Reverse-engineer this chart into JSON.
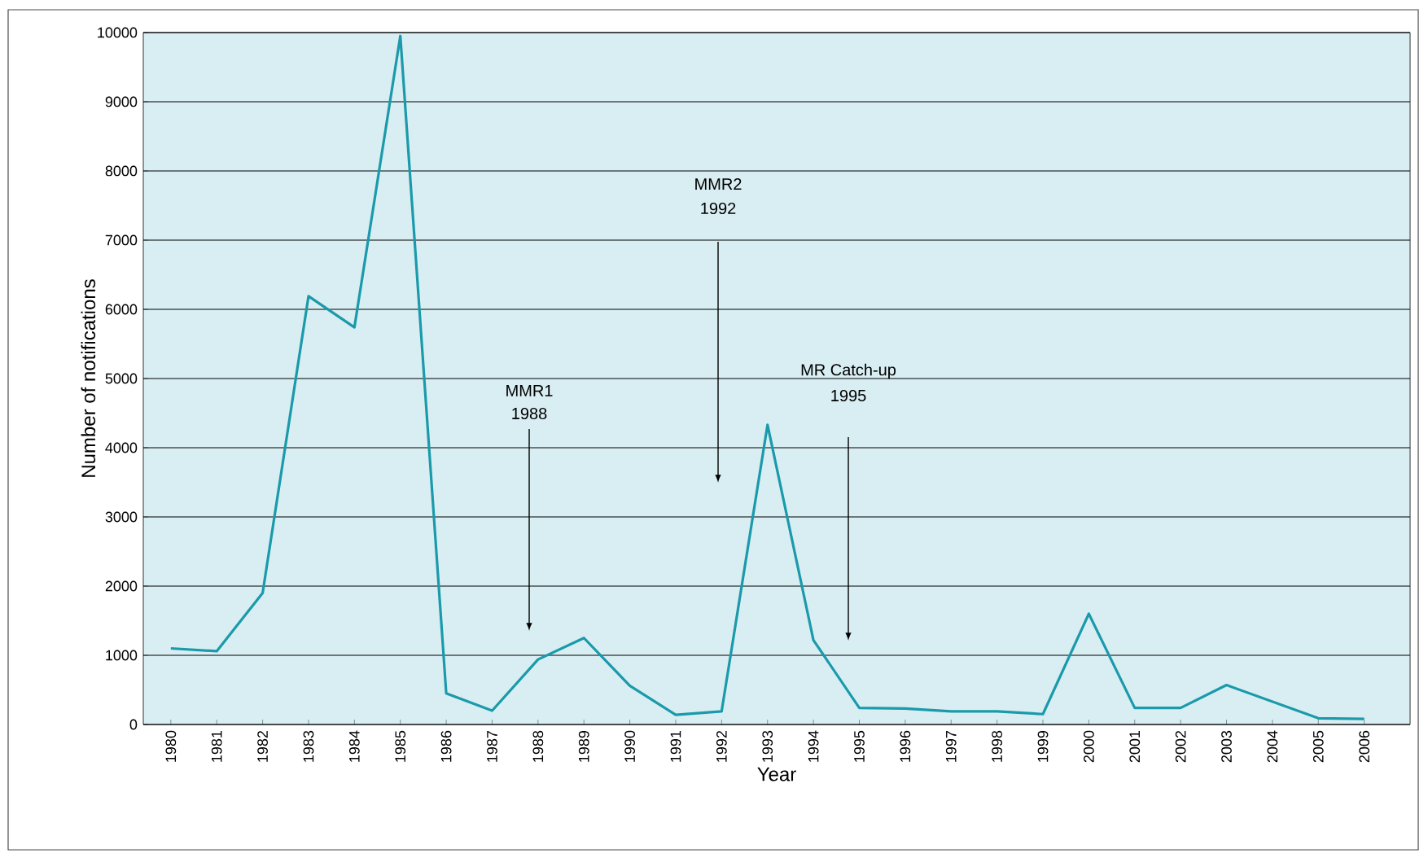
{
  "chart_data": {
    "type": "line",
    "xlabel": "Year",
    "ylabel": "Number of notifications",
    "categories": [
      "1980",
      "1981",
      "1982",
      "1983",
      "1984",
      "1985",
      "1986",
      "1987",
      "1988",
      "1989",
      "1990",
      "1991",
      "1992",
      "1993",
      "1994",
      "1995",
      "1996",
      "1997",
      "1998",
      "1999",
      "2000",
      "2001",
      "2002",
      "2003",
      "2004",
      "2005",
      "2006"
    ],
    "values": [
      1100,
      1060,
      1900,
      6190,
      5740,
      9950,
      450,
      200,
      940,
      1250,
      560,
      140,
      190,
      4330,
      1220,
      240,
      230,
      190,
      190,
      150,
      1600,
      240,
      240,
      570,
      330,
      90,
      80
    ],
    "color": "#1a9aaa",
    "ylim": [
      0,
      10000
    ],
    "yticks": [
      0,
      1000,
      2000,
      3000,
      4000,
      5000,
      6000,
      7000,
      8000,
      9000,
      10000
    ],
    "grid": "y",
    "marker": "none",
    "line_style": "solid",
    "annotations": [
      "MMR1",
      "1988",
      "MMR2",
      "1992",
      "MR Catch-up",
      "1995"
    ]
  }
}
